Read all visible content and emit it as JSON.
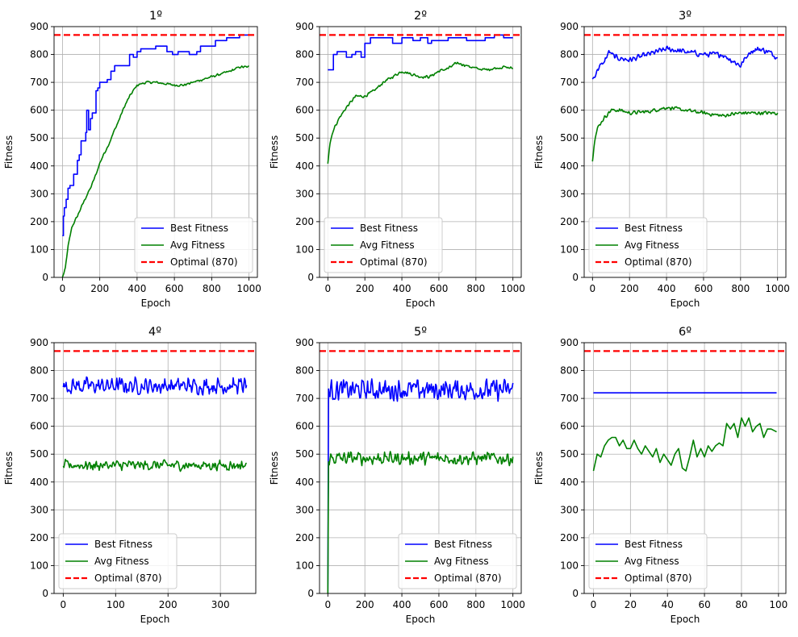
{
  "chart_data": [
    {
      "type": "line",
      "title": "1º",
      "xlabel": "Epoch",
      "ylabel": "Fitness",
      "xlim": [
        -45,
        1045
      ],
      "ylim": [
        0,
        900
      ],
      "xticks": [
        0,
        200,
        400,
        600,
        800,
        1000
      ],
      "yticks": [
        0,
        100,
        200,
        300,
        400,
        500,
        600,
        700,
        800,
        900
      ],
      "grid": true,
      "legend_position": "lower-right",
      "series": [
        {
          "name": "Best Fitness",
          "color": "#0000ff",
          "style": "step",
          "x": [
            0,
            5,
            10,
            20,
            30,
            40,
            60,
            80,
            90,
            100,
            115,
            125,
            130,
            140,
            150,
            160,
            180,
            190,
            200,
            220,
            240,
            260,
            280,
            300,
            320,
            340,
            360,
            380,
            400,
            420,
            450,
            480,
            500,
            530,
            560,
            590,
            620,
            650,
            680,
            700,
            720,
            740,
            760,
            790,
            820,
            850,
            880,
            900,
            920,
            950,
            980,
            1000
          ],
          "y": [
            150,
            220,
            250,
            280,
            320,
            330,
            370,
            420,
            440,
            490,
            490,
            520,
            600,
            530,
            570,
            590,
            670,
            680,
            700,
            700,
            710,
            740,
            760,
            760,
            760,
            760,
            800,
            790,
            810,
            820,
            820,
            820,
            830,
            830,
            810,
            800,
            810,
            810,
            800,
            800,
            810,
            830,
            830,
            830,
            850,
            850,
            860,
            860,
            860,
            870,
            870,
            870
          ]
        },
        {
          "name": "Avg Fitness",
          "color": "#008000",
          "style": "noisy",
          "noise": 5,
          "x": [
            0,
            15,
            30,
            50,
            80,
            100,
            120,
            150,
            180,
            200,
            220,
            250,
            280,
            300,
            330,
            360,
            400,
            450,
            500,
            550,
            600,
            650,
            700,
            750,
            800,
            850,
            900,
            950,
            1000
          ],
          "y": [
            0,
            30,
            110,
            180,
            220,
            250,
            280,
            320,
            370,
            410,
            440,
            480,
            530,
            560,
            610,
            650,
            690,
            700,
            700,
            695,
            690,
            690,
            700,
            710,
            720,
            730,
            740,
            755,
            755
          ]
        },
        {
          "name": "Optimal (870)",
          "color": "#ff0000",
          "style": "hline",
          "y": 870
        }
      ]
    },
    {
      "type": "line",
      "title": "2º",
      "xlabel": "Epoch",
      "ylabel": "Fitness",
      "xlim": [
        -45,
        1045
      ],
      "ylim": [
        0,
        900
      ],
      "xticks": [
        0,
        200,
        400,
        600,
        800,
        1000
      ],
      "yticks": [
        0,
        100,
        200,
        300,
        400,
        500,
        600,
        700,
        800,
        900
      ],
      "grid": true,
      "legend_position": "lower-left",
      "series": [
        {
          "name": "Best Fitness",
          "color": "#0000ff",
          "style": "step",
          "x": [
            0,
            30,
            50,
            100,
            130,
            150,
            180,
            200,
            230,
            250,
            300,
            350,
            400,
            430,
            460,
            500,
            540,
            560,
            600,
            650,
            700,
            750,
            800,
            850,
            900,
            950,
            1000
          ],
          "y": [
            745,
            800,
            810,
            790,
            800,
            810,
            790,
            840,
            860,
            860,
            860,
            840,
            860,
            860,
            850,
            860,
            840,
            850,
            850,
            860,
            860,
            850,
            850,
            860,
            870,
            860,
            860
          ]
        },
        {
          "name": "Avg Fitness",
          "color": "#008000",
          "style": "noisy",
          "noise": 6,
          "x": [
            0,
            10,
            30,
            60,
            100,
            150,
            200,
            250,
            300,
            350,
            400,
            450,
            500,
            550,
            600,
            650,
            700,
            750,
            800,
            850,
            900,
            950,
            1000
          ],
          "y": [
            410,
            480,
            530,
            570,
            610,
            650,
            650,
            670,
            700,
            720,
            740,
            730,
            720,
            720,
            740,
            750,
            770,
            760,
            750,
            745,
            750,
            755,
            750
          ]
        },
        {
          "name": "Optimal (870)",
          "color": "#ff0000",
          "style": "hline",
          "y": 870
        }
      ]
    },
    {
      "type": "line",
      "title": "3º",
      "xlabel": "Epoch",
      "ylabel": "Fitness",
      "xlim": [
        -45,
        1045
      ],
      "ylim": [
        0,
        900
      ],
      "xticks": [
        0,
        200,
        400,
        600,
        800,
        1000
      ],
      "yticks": [
        0,
        100,
        200,
        300,
        400,
        500,
        600,
        700,
        800,
        900
      ],
      "grid": true,
      "legend_position": "lower-left",
      "series": [
        {
          "name": "Best Fitness",
          "color": "#0000ff",
          "style": "noisy",
          "noise": 12,
          "x": [
            0,
            10,
            30,
            60,
            90,
            120,
            200,
            300,
            350,
            400,
            500,
            600,
            700,
            750,
            800,
            850,
            900,
            950,
            1000
          ],
          "y": [
            710,
            720,
            750,
            770,
            810,
            790,
            780,
            800,
            810,
            820,
            810,
            800,
            800,
            780,
            760,
            810,
            820,
            810,
            790
          ]
        },
        {
          "name": "Avg Fitness",
          "color": "#008000",
          "style": "noisy",
          "noise": 8,
          "x": [
            0,
            10,
            30,
            60,
            100,
            150,
            200,
            300,
            400,
            500,
            600,
            700,
            800,
            900,
            1000
          ],
          "y": [
            420,
            490,
            540,
            570,
            600,
            600,
            590,
            595,
            610,
            600,
            590,
            580,
            590,
            590,
            590
          ]
        },
        {
          "name": "Optimal (870)",
          "color": "#ff0000",
          "style": "hline",
          "y": 870
        }
      ]
    },
    {
      "type": "line",
      "title": "4º",
      "xlabel": "Epoch",
      "ylabel": "Fitness",
      "xlim": [
        -17.5,
        367.5
      ],
      "ylim": [
        0,
        900
      ],
      "xticks": [
        0,
        100,
        200,
        300
      ],
      "yticks": [
        0,
        100,
        200,
        300,
        400,
        500,
        600,
        700,
        800,
        900
      ],
      "grid": true,
      "legend_position": "lower-left",
      "series": [
        {
          "name": "Best Fitness",
          "color": "#0000ff",
          "style": "noisy",
          "noise": 35,
          "x": [
            0,
            350
          ],
          "y": [
            745,
            745
          ]
        },
        {
          "name": "Avg Fitness",
          "color": "#008000",
          "style": "noisy",
          "noise": 22,
          "x": [
            0,
            350
          ],
          "y": [
            460,
            460
          ]
        },
        {
          "name": "Optimal (870)",
          "color": "#ff0000",
          "style": "hline",
          "y": 870
        }
      ]
    },
    {
      "type": "line",
      "title": "5º",
      "xlabel": "Epoch",
      "ylabel": "Fitness",
      "xlim": [
        -45,
        1045
      ],
      "ylim": [
        0,
        900
      ],
      "xticks": [
        0,
        200,
        400,
        600,
        800,
        1000
      ],
      "yticks": [
        0,
        100,
        200,
        300,
        400,
        500,
        600,
        700,
        800,
        900
      ],
      "grid": true,
      "legend_position": "lower-right",
      "series": [
        {
          "name": "Best Fitness",
          "color": "#0000ff",
          "style": "noisy",
          "noise": 45,
          "start_point": [
            0,
            0
          ],
          "x": [
            4,
            1000
          ],
          "y": [
            730,
            730
          ]
        },
        {
          "name": "Avg Fitness",
          "color": "#008000",
          "style": "noisy",
          "noise": 28,
          "start_point": [
            0,
            0
          ],
          "x": [
            4,
            1000
          ],
          "y": [
            485,
            485
          ]
        },
        {
          "name": "Optimal (870)",
          "color": "#ff0000",
          "style": "hline",
          "y": 870
        }
      ]
    },
    {
      "type": "line",
      "title": "6º",
      "xlabel": "Epoch",
      "ylabel": "Fitness",
      "xlim": [
        -5,
        104
      ],
      "ylim": [
        0,
        900
      ],
      "xticks": [
        0,
        20,
        40,
        60,
        80,
        100
      ],
      "yticks": [
        0,
        100,
        200,
        300,
        400,
        500,
        600,
        700,
        800,
        900
      ],
      "grid": true,
      "legend_position": "lower-left",
      "series": [
        {
          "name": "Best Fitness",
          "color": "#0000ff",
          "style": "line",
          "x": [
            0,
            99
          ],
          "y": [
            720,
            720
          ]
        },
        {
          "name": "Avg Fitness",
          "color": "#008000",
          "style": "line",
          "x": [
            0,
            2,
            4,
            6,
            8,
            10,
            12,
            14,
            16,
            18,
            20,
            22,
            24,
            26,
            28,
            30,
            32,
            34,
            36,
            38,
            40,
            42,
            44,
            46,
            48,
            50,
            52,
            54,
            56,
            58,
            60,
            62,
            64,
            66,
            68,
            70,
            72,
            74,
            76,
            78,
            80,
            82,
            84,
            86,
            88,
            90,
            92,
            94,
            96,
            99
          ],
          "y": [
            440,
            500,
            490,
            530,
            550,
            560,
            560,
            530,
            550,
            520,
            520,
            550,
            520,
            500,
            530,
            510,
            490,
            520,
            470,
            500,
            480,
            460,
            500,
            520,
            450,
            440,
            490,
            550,
            490,
            520,
            490,
            530,
            510,
            530,
            540,
            530,
            610,
            590,
            610,
            560,
            630,
            600,
            630,
            580,
            600,
            610,
            560,
            590,
            590,
            580
          ]
        },
        {
          "name": "Optimal (870)",
          "color": "#ff0000",
          "style": "hline",
          "y": 870
        }
      ]
    }
  ]
}
